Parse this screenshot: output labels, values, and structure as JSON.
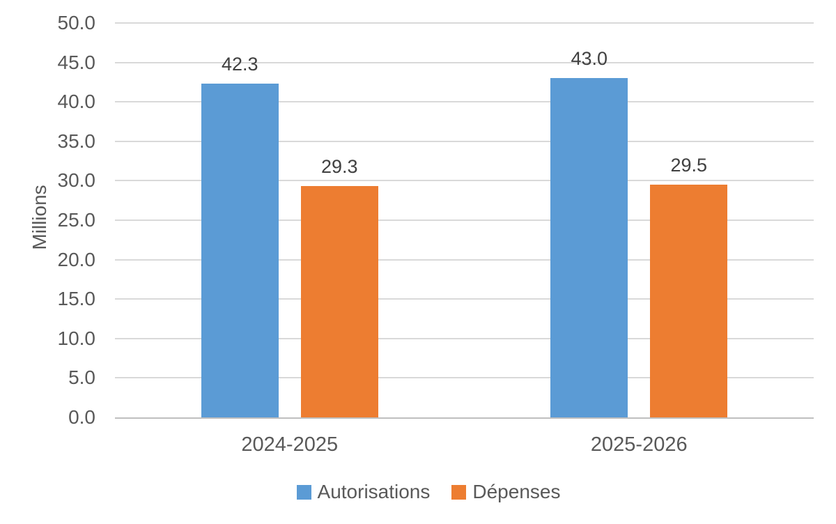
{
  "chart_data": {
    "type": "bar",
    "categories": [
      "2024-2025",
      "2025-2026"
    ],
    "series": [
      {
        "name": "Autorisations",
        "color": "#5B9BD5",
        "values": [
          42.3,
          43.0
        ],
        "data_labels": [
          "42.3",
          "43.0"
        ]
      },
      {
        "name": "Dépenses",
        "color": "#ED7D31",
        "values": [
          29.3,
          29.5
        ],
        "data_labels": [
          "29.3",
          "29.5"
        ]
      }
    ],
    "title": "",
    "xlabel": "",
    "ylabel": "Millions",
    "ylim": [
      0,
      50
    ],
    "yticks": [
      {
        "value": 0,
        "label": "0.0"
      },
      {
        "value": 5,
        "label": "5.0"
      },
      {
        "value": 10,
        "label": "10.0"
      },
      {
        "value": 15,
        "label": "15.0"
      },
      {
        "value": 20,
        "label": "20.0"
      },
      {
        "value": 25,
        "label": "25.0"
      },
      {
        "value": 30,
        "label": "30.0"
      },
      {
        "value": 35,
        "label": "35.0"
      },
      {
        "value": 40,
        "label": "40.0"
      },
      {
        "value": 45,
        "label": "45.0"
      },
      {
        "value": 50,
        "label": "50.0"
      }
    ],
    "grid": true,
    "legend_position": "bottom",
    "styles": {
      "gridline_color": "#D9D9D9",
      "axis_line_color": "#BFBFBF",
      "axis_text_color": "#595959",
      "data_label_color": "#404040",
      "background": "#FFFFFF"
    }
  }
}
